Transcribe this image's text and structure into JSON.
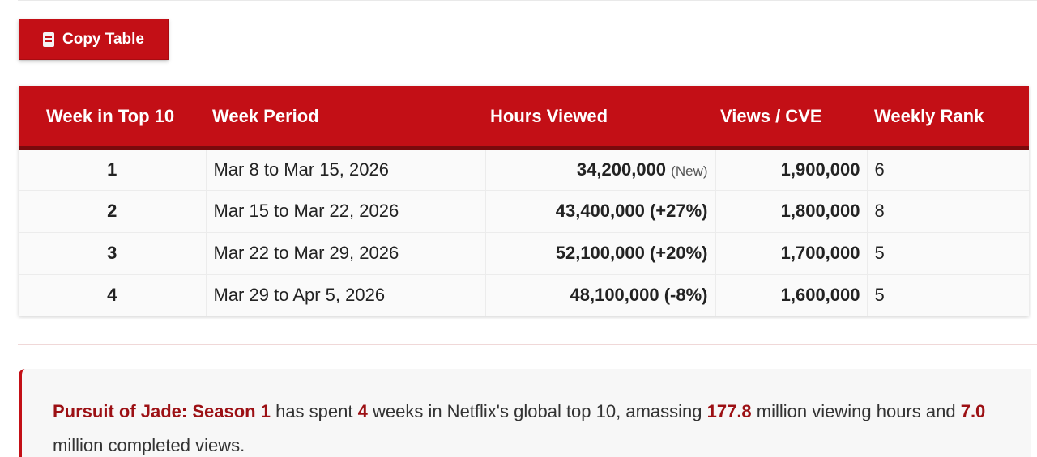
{
  "toolbar": {
    "copy_label": "Copy Table",
    "copy_icon": "clipboard-icon"
  },
  "table": {
    "headers": [
      "Week in Top 10",
      "Week Period",
      "Hours Viewed",
      "Views / CVE",
      "Weekly Rank"
    ],
    "rows": [
      {
        "week": "1",
        "period": "Mar 8 to Mar 15, 2026",
        "hours": "34,200,000",
        "hours_note": "(New)",
        "views": "1,900,000",
        "rank": "6"
      },
      {
        "week": "2",
        "period": "Mar 15 to Mar 22, 2026",
        "hours": "43,400,000 (+27%)",
        "hours_note": "",
        "views": "1,800,000",
        "rank": "8"
      },
      {
        "week": "3",
        "period": "Mar 22 to Mar 29, 2026",
        "hours": "52,100,000 (+20%)",
        "hours_note": "",
        "views": "1,700,000",
        "rank": "5"
      },
      {
        "week": "4",
        "period": "Mar 29 to Apr 5, 2026",
        "hours": "48,100,000 (-8%)",
        "hours_note": "",
        "views": "1,600,000",
        "rank": "5"
      }
    ]
  },
  "summary": {
    "title": "Pursuit of Jade: Season 1",
    "text_1": " has spent ",
    "weeks": "4",
    "text_2": " weeks in Netflix's global top 10, amassing ",
    "hours": "177.8",
    "text_3": " million viewing hours and ",
    "views": "7.0",
    "text_4": " million completed views."
  },
  "colors": {
    "brand_red": "#c30f16",
    "highlight_red": "#9c1014"
  }
}
